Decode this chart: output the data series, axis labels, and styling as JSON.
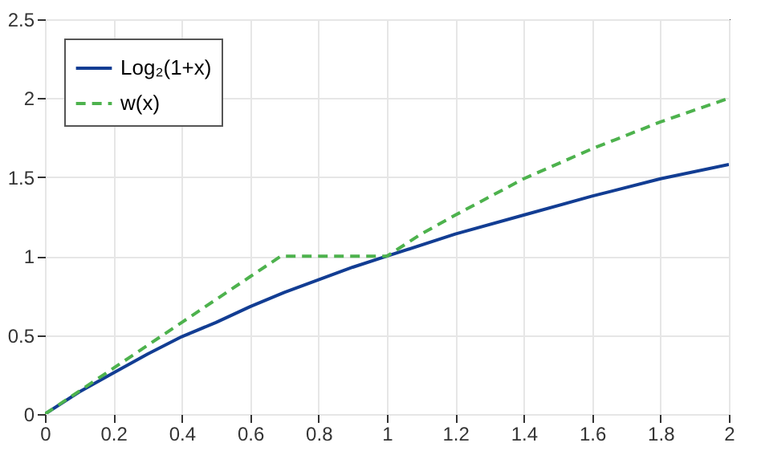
{
  "chart_data": {
    "type": "line",
    "x": [
      0,
      0.1,
      0.2,
      0.3,
      0.4,
      0.5,
      0.6,
      0.7,
      0.8,
      0.9,
      1,
      1.2,
      1.4,
      1.6,
      1.8,
      2
    ],
    "series": [
      {
        "name": "Log₂(1+x)",
        "color": "#123d93",
        "line_style": "solid",
        "values": [
          0,
          0.14,
          0.26,
          0.38,
          0.49,
          0.58,
          0.68,
          0.77,
          0.85,
          0.93,
          1,
          1.14,
          1.26,
          1.38,
          1.49,
          1.58
        ]
      },
      {
        "name": "w(x)",
        "color": "#4db24d",
        "line_style": "dashed",
        "x": [
          0,
          0.2,
          0.4,
          0.6,
          0.69,
          1,
          1.1,
          1.2,
          1.4,
          1.6,
          1.8,
          2
        ],
        "values": [
          0,
          0.29,
          0.58,
          0.87,
          1,
          1,
          1.14,
          1.26,
          1.49,
          1.68,
          1.85,
          2
        ]
      }
    ],
    "xlim": [
      0,
      2
    ],
    "xticks": [
      0,
      0.2,
      0.4,
      0.6,
      0.8,
      1,
      1.2,
      1.4,
      1.6,
      1.8,
      2
    ],
    "ylim": [
      0,
      2.5
    ],
    "yticks": [
      0,
      0.5,
      1,
      1.5,
      2,
      2.5
    ],
    "grid": true,
    "legend": "top left"
  }
}
